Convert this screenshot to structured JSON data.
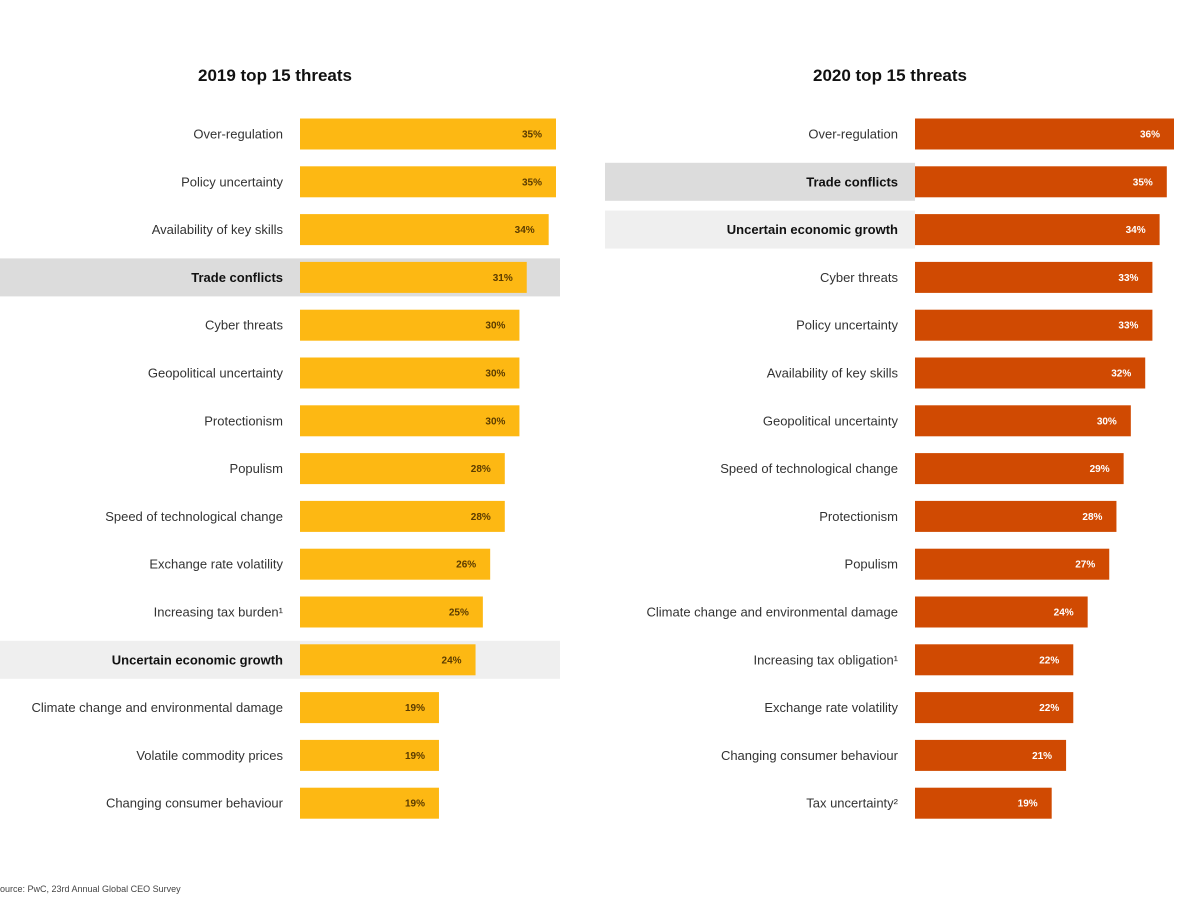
{
  "chart_data": [
    {
      "type": "bar",
      "orientation": "horizontal",
      "title": "2019 top 15 threats",
      "bar_color": "#FDB813",
      "value_color": "#5a3b00",
      "highlight_color": [
        "#DCDCDC",
        "#EFEFEF"
      ],
      "categories": [
        "Over-regulation",
        "Policy uncertainty",
        "Availability of key skills",
        "Trade conflicts",
        "Cyber threats",
        "Geopolitical uncertainty",
        "Protectionism",
        "Populism",
        "Speed of technological change",
        "Exchange rate volatility",
        "Increasing tax burden¹",
        "Uncertain economic growth",
        "Climate change and environmental damage",
        "Volatile commodity prices",
        "Changing consumer behaviour"
      ],
      "values": [
        35,
        35,
        34,
        31,
        30,
        30,
        30,
        28,
        28,
        26,
        25,
        24,
        19,
        19,
        19
      ],
      "value_labels": [
        "35%",
        "35%",
        "34%",
        "31%",
        "30%",
        "30%",
        "30%",
        "28%",
        "28%",
        "26%",
        "25%",
        "24%",
        "19%",
        "19%",
        "19%"
      ],
      "highlight": [
        "",
        "",
        "",
        "dark",
        "",
        "",
        "",
        "",
        "",
        "",
        "",
        "light",
        "",
        "",
        ""
      ],
      "xlim": [
        0,
        35
      ]
    },
    {
      "type": "bar",
      "orientation": "horizontal",
      "title": "2020 top 15 threats",
      "bar_color": "#D04A02",
      "value_color": "#ffffff",
      "highlight_color": [
        "#DCDCDC",
        "#EFEFEF"
      ],
      "categories": [
        "Over-regulation",
        "Trade conflicts",
        "Uncertain economic growth",
        "Cyber threats",
        "Policy uncertainty",
        "Availability of key skills",
        "Geopolitical uncertainty",
        "Speed of technological change",
        "Protectionism",
        "Populism",
        "Climate change and environmental damage",
        "Increasing tax obligation¹",
        "Exchange rate volatility",
        "Changing consumer behaviour",
        "Tax uncertainty²"
      ],
      "values": [
        36,
        35,
        34,
        33,
        33,
        32,
        30,
        29,
        28,
        27,
        24,
        22,
        22,
        21,
        19
      ],
      "value_labels": [
        "36%",
        "35%",
        "34%",
        "33%",
        "33%",
        "32%",
        "30%",
        "29%",
        "28%",
        "27%",
        "24%",
        "22%",
        "22%",
        "21%",
        "19%"
      ],
      "highlight": [
        "",
        "dark",
        "light",
        "",
        "",
        "",
        "",
        "",
        "",
        "",
        "",
        "",
        "",
        "",
        ""
      ],
      "xlim": [
        0,
        36
      ]
    }
  ],
  "source": "ource: PwC, 23rd Annual Global CEO Survey"
}
